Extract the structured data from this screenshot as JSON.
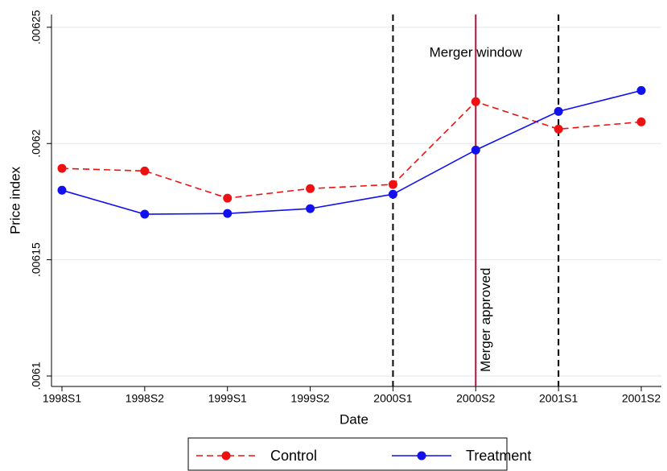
{
  "chart_data": {
    "type": "line",
    "x_label": "Date",
    "y_label": "Price index",
    "categories": [
      "1998S1",
      "1998S2",
      "1999S1",
      "1999S2",
      "2000S1",
      "2000S2",
      "2001S1",
      "2001S2"
    ],
    "series": [
      {
        "name": "Control",
        "color": "#ee1111",
        "style": "dashed",
        "values": [
          0.0061893,
          0.0061882,
          0.0061765,
          0.0061806,
          0.0061824,
          0.006218,
          0.0062062,
          0.0062093
        ]
      },
      {
        "name": "Treatment",
        "color": "#1111ee",
        "style": "solid",
        "values": [
          0.0061799,
          0.0061696,
          0.0061699,
          0.006172,
          0.0061782,
          0.0061972,
          0.0062138,
          0.0062228
        ]
      }
    ],
    "ylim": [
      0.0060955,
      0.0062555
    ],
    "yticks": [
      {
        "value": 0.0061,
        "label": ".0061"
      },
      {
        "value": 0.00615,
        "label": ".00615"
      },
      {
        "value": 0.0062,
        "label": ".0062"
      },
      {
        "value": 0.00625,
        "label": ".00625"
      }
    ],
    "grid": true,
    "vlines": [
      {
        "at": "2000S1",
        "color": "#000000",
        "style": "dashed"
      },
      {
        "at": "2000S2",
        "color": "#b0103a",
        "style": "solid"
      },
      {
        "at": "2001S1",
        "color": "#000000",
        "style": "dashed"
      }
    ],
    "annotations": [
      {
        "text": "Merger window",
        "at": "2000S2"
      },
      {
        "text": "Merger approved",
        "at": "2000S2"
      }
    ],
    "legend": "bottom"
  }
}
